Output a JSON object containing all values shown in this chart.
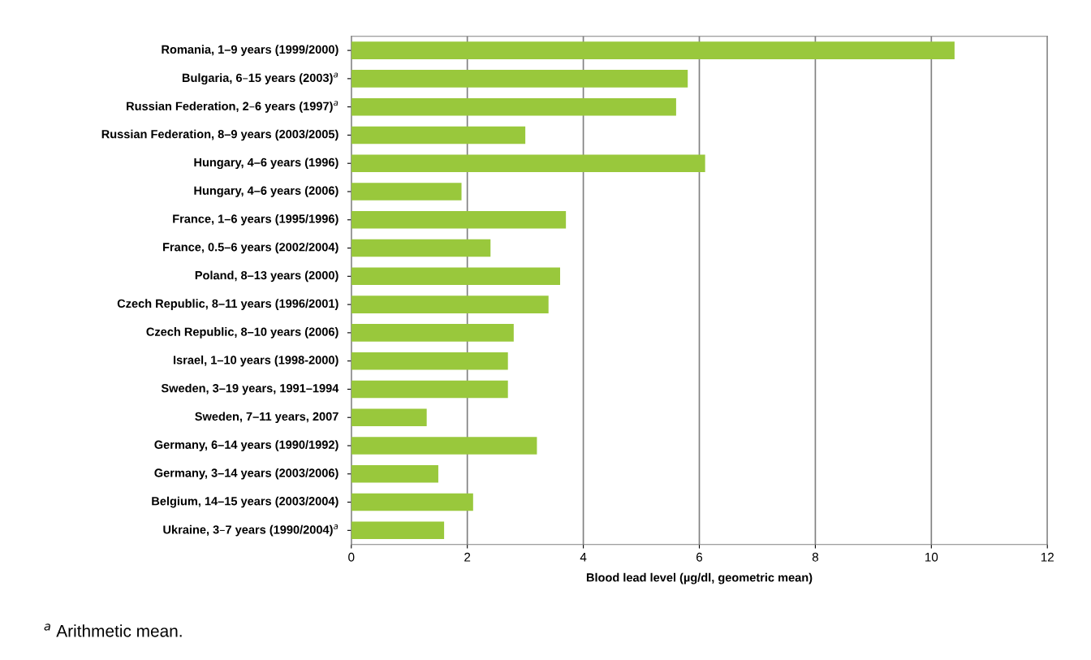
{
  "chart_data": {
    "type": "bar",
    "orientation": "horizontal",
    "xlabel": "Blood lead level (µg/dl, geometric mean)",
    "categories": [
      "Romania, 1–9 years (1999/2000)",
      "Bulgaria, 6–15 years (2003)$^{a}$",
      "Russian Federation, 2–6 years (1997)$^{a}$",
      "Russian Federation, 8–9 years (2003/2005)",
      "Hungary, 4–6 years (1996)",
      "Hungary, 4–6 years (2006)",
      "France, 1–6 years (1995/1996)",
      "France, 0.5–6 years (2002/2004)",
      "Poland, 8–13 years (2000)",
      "Czech Republic, 8–11 years (1996/2001)",
      "Czech Republic, 8–10 years (2006)",
      "Israel, 1–10 years (1998-2000)",
      "Sweden, 3–19 years, 1991–1994",
      "Sweden, 7–11 years, 2007",
      "Germany, 6–14 years (1990/1992)",
      "Germany, 3–14 years (2003/2006)",
      "Belgium, 14–15 years (2003/2004)",
      "Ukraine, 3–7 years (1990/2004)$^{a}$"
    ],
    "values": [
      10.4,
      5.8,
      5.6,
      3.0,
      6.1,
      1.9,
      3.7,
      2.4,
      3.6,
      3.4,
      2.8,
      2.7,
      2.7,
      1.3,
      3.2,
      1.5,
      2.1,
      1.6
    ],
    "color": "#99c83c",
    "xlim": [
      0,
      12
    ],
    "xticks": [
      0,
      2,
      4,
      6,
      8,
      10,
      12
    ],
    "grid": "x",
    "annotations": [
      "$^{a}$ Arithmetic mean."
    ]
  }
}
